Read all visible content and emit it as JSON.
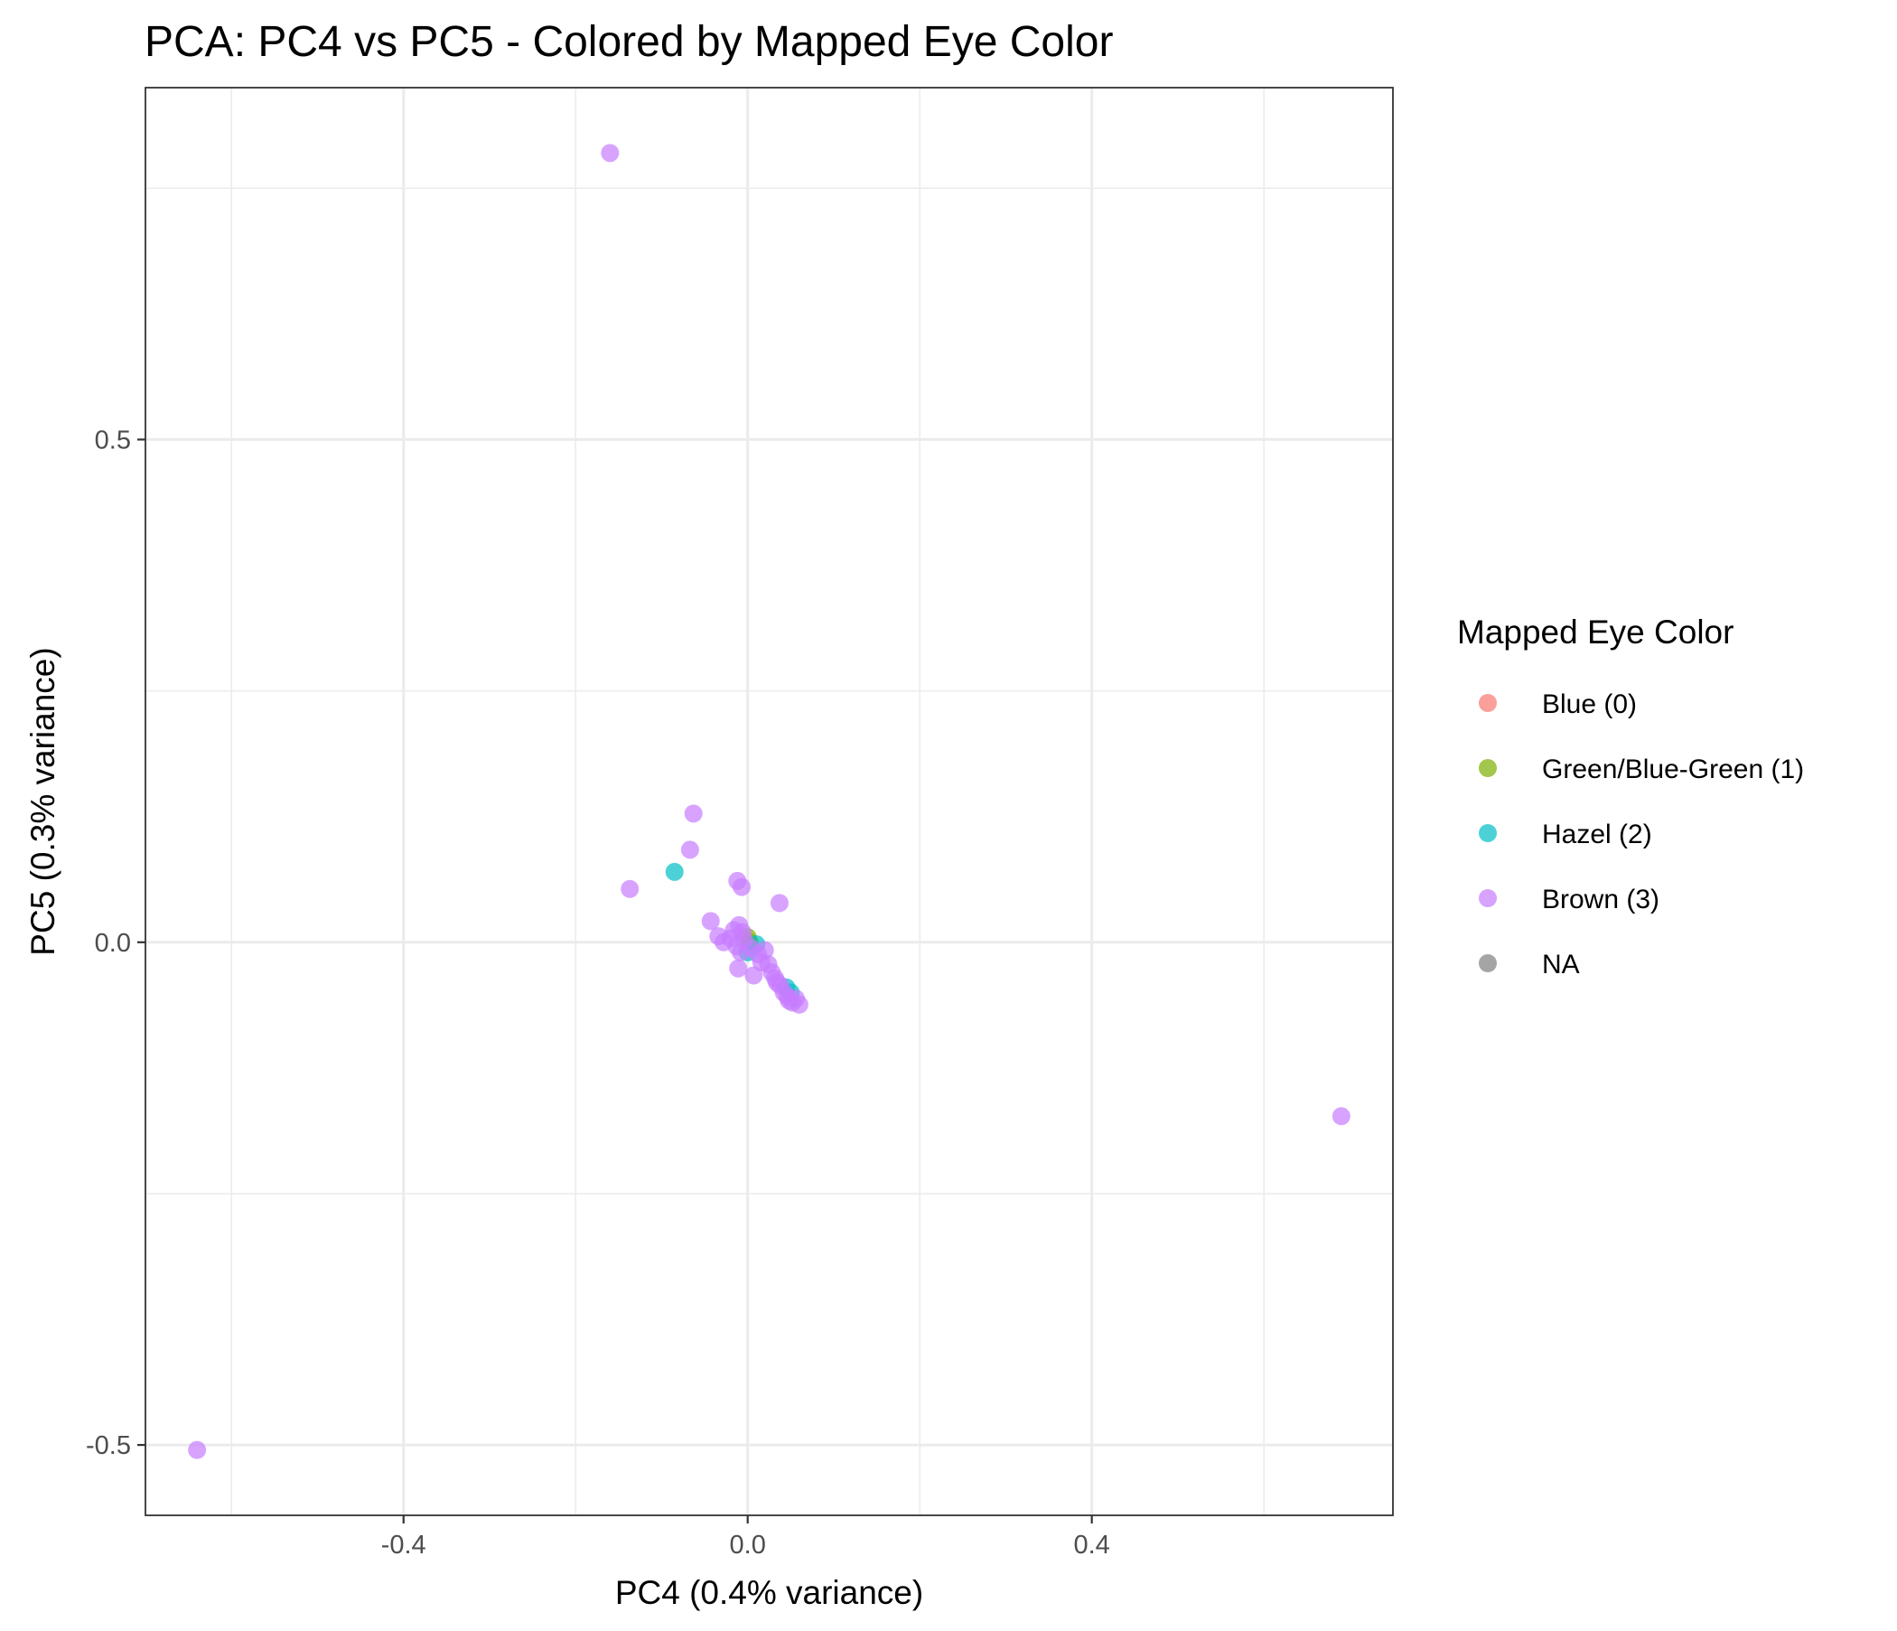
{
  "chart_data": {
    "type": "scatter",
    "title": "PCA: PC4 vs PC5 - Colored by Mapped Eye Color",
    "xlabel": "PC4 (0.4% variance)",
    "ylabel": "PC5 (0.3% variance)",
    "xlim": [
      -0.7,
      0.75
    ],
    "ylim": [
      -0.57,
      0.85
    ],
    "x_ticks": [
      -0.4,
      0.0,
      0.4
    ],
    "x_tick_labels": [
      "-0.4",
      "0.0",
      "0.4"
    ],
    "y_ticks": [
      -0.5,
      0.0,
      0.5
    ],
    "y_tick_labels": [
      "-0.5",
      "0.0",
      "0.5"
    ],
    "grid": true,
    "legend": {
      "title": "Mapped Eye Color",
      "position": "right",
      "entries": [
        "Blue (0)",
        "Green/Blue-Green (1)",
        "Hazel (2)",
        "Brown (3)",
        "NA"
      ]
    },
    "series": [
      {
        "name": "Blue (0)",
        "color": "#F8766D",
        "points": []
      },
      {
        "name": "Green/Blue-Green (1)",
        "color": "#7CAE00",
        "points": [
          [
            0.0,
            0.005
          ],
          [
            0.002,
            0.0
          ]
        ]
      },
      {
        "name": "Hazel (2)",
        "color": "#00BFC4",
        "points": [
          [
            -0.085,
            0.07
          ],
          [
            0.0,
            -0.01
          ],
          [
            0.01,
            -0.002
          ],
          [
            0.045,
            -0.045
          ],
          [
            0.05,
            -0.05
          ]
        ]
      },
      {
        "name": "Brown (3)",
        "color": "#C77CFF",
        "points": [
          [
            -0.16,
            0.785
          ],
          [
            0.69,
            -0.173
          ],
          [
            -0.64,
            -0.505
          ],
          [
            -0.063,
            0.128
          ],
          [
            -0.067,
            0.092
          ],
          [
            -0.137,
            0.053
          ],
          [
            -0.012,
            0.061
          ],
          [
            -0.007,
            0.055
          ],
          [
            0.037,
            0.039
          ],
          [
            -0.043,
            0.021
          ],
          [
            -0.034,
            0.006
          ],
          [
            -0.028,
            0.0
          ],
          [
            -0.02,
            0.004
          ],
          [
            -0.016,
            0.012
          ],
          [
            -0.01,
            0.017
          ],
          [
            -0.006,
            0.01
          ],
          [
            -0.004,
            0.002
          ],
          [
            -0.013,
            -0.004
          ],
          [
            -0.008,
            -0.01
          ],
          [
            -0.011,
            -0.026
          ],
          [
            0.004,
            -0.006
          ],
          [
            0.007,
            -0.033
          ],
          [
            0.012,
            -0.012
          ],
          [
            0.02,
            -0.008
          ],
          [
            0.016,
            -0.02
          ],
          [
            0.024,
            -0.022
          ],
          [
            0.028,
            -0.03
          ],
          [
            0.032,
            -0.036
          ],
          [
            0.038,
            -0.043
          ],
          [
            0.042,
            -0.05
          ],
          [
            0.048,
            -0.058
          ],
          [
            0.052,
            -0.06
          ],
          [
            0.056,
            -0.056
          ],
          [
            0.06,
            -0.062
          ],
          [
            0.046,
            -0.054
          ],
          [
            0.034,
            -0.04
          ]
        ]
      },
      {
        "name": "NA",
        "color": "#7F7F7F",
        "points": []
      }
    ]
  }
}
